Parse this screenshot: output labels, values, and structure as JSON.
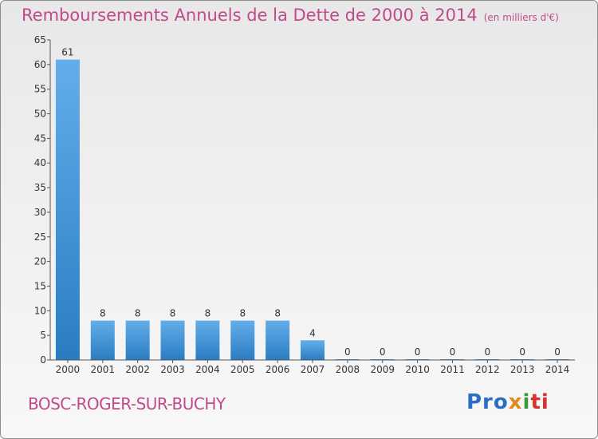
{
  "header": {
    "title": "Remboursements Annuels de la Dette de 2000 à 2014",
    "unit": "(en milliers d'€)"
  },
  "footer": {
    "commune": "BOSC-ROGER-SUR-BUCHY",
    "logo_parts": [
      "Pro",
      "x",
      "i",
      "ti"
    ]
  },
  "colors": {
    "title": "#c04a8a",
    "bar_light": "#63aeea",
    "bar_dark": "#2a7cc2"
  },
  "chart_data": {
    "type": "bar",
    "title": "Remboursements Annuels de la Dette de 2000 à 2014",
    "categories": [
      "2000",
      "2001",
      "2002",
      "2003",
      "2004",
      "2005",
      "2006",
      "2007",
      "2008",
      "2009",
      "2010",
      "2011",
      "2012",
      "2013",
      "2014"
    ],
    "values": [
      61,
      8,
      8,
      8,
      8,
      8,
      8,
      4,
      0,
      0,
      0,
      0,
      0,
      0,
      0
    ],
    "ylim": [
      0,
      65
    ],
    "yticks": [
      0,
      5,
      10,
      15,
      20,
      25,
      30,
      35,
      40,
      45,
      50,
      55,
      60,
      65
    ],
    "grid": false,
    "data_labels": true
  }
}
